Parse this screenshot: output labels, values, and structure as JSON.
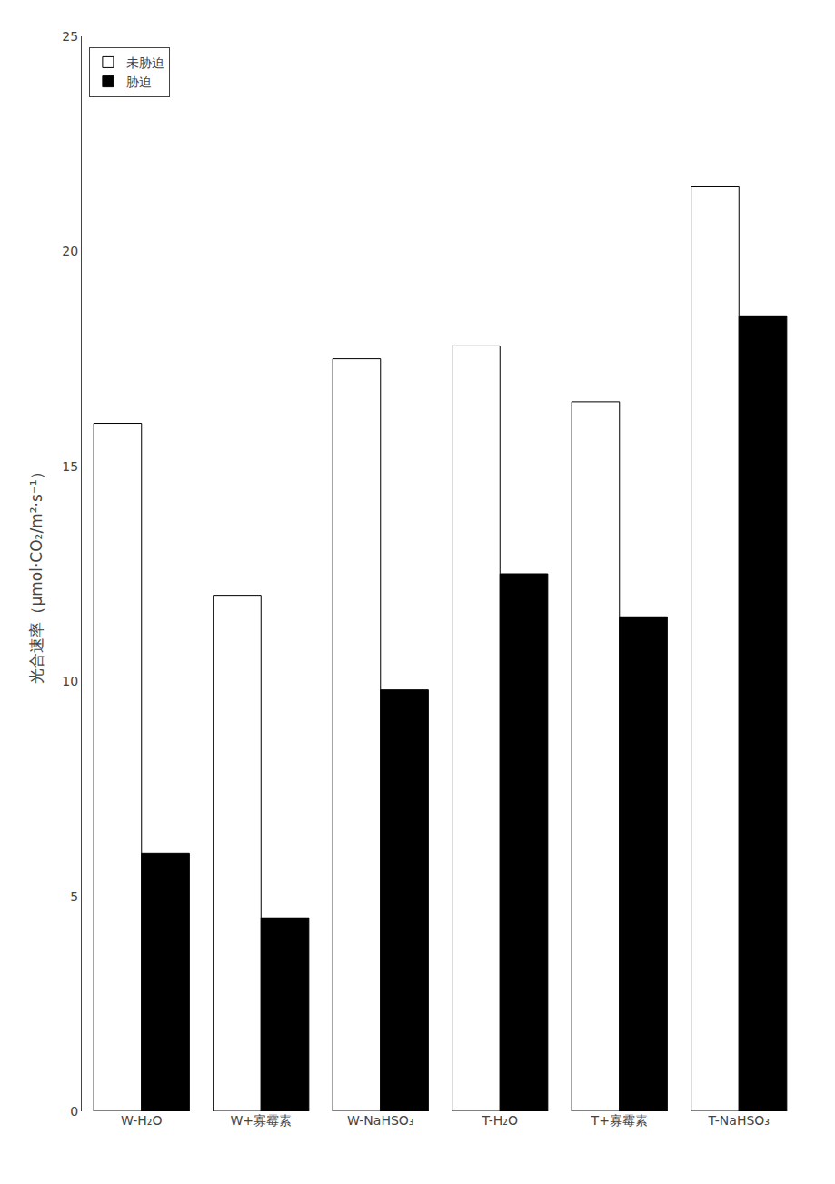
{
  "chart_data": {
    "type": "bar",
    "categories": [
      "W-H₂O",
      "W+寡霉素",
      "W-NaHSO₃",
      "T-H₂O",
      "T+寡霉素",
      "T-NaHSO₃"
    ],
    "series": [
      {
        "name": "未胁迫",
        "color": "#ffffff",
        "values": [
          16.0,
          12.0,
          17.5,
          17.8,
          16.5,
          21.5
        ]
      },
      {
        "name": "胁迫",
        "color": "#000000",
        "values": [
          6.0,
          4.5,
          9.8,
          12.5,
          11.5,
          18.5
        ]
      }
    ],
    "y_label": "光合速率（μmol·CO₂/m²·s⁻¹）",
    "ylim": [
      0,
      25
    ],
    "yticks": [
      0,
      5,
      10,
      15,
      20,
      25
    ],
    "legend": "upper left",
    "grid": false
  }
}
